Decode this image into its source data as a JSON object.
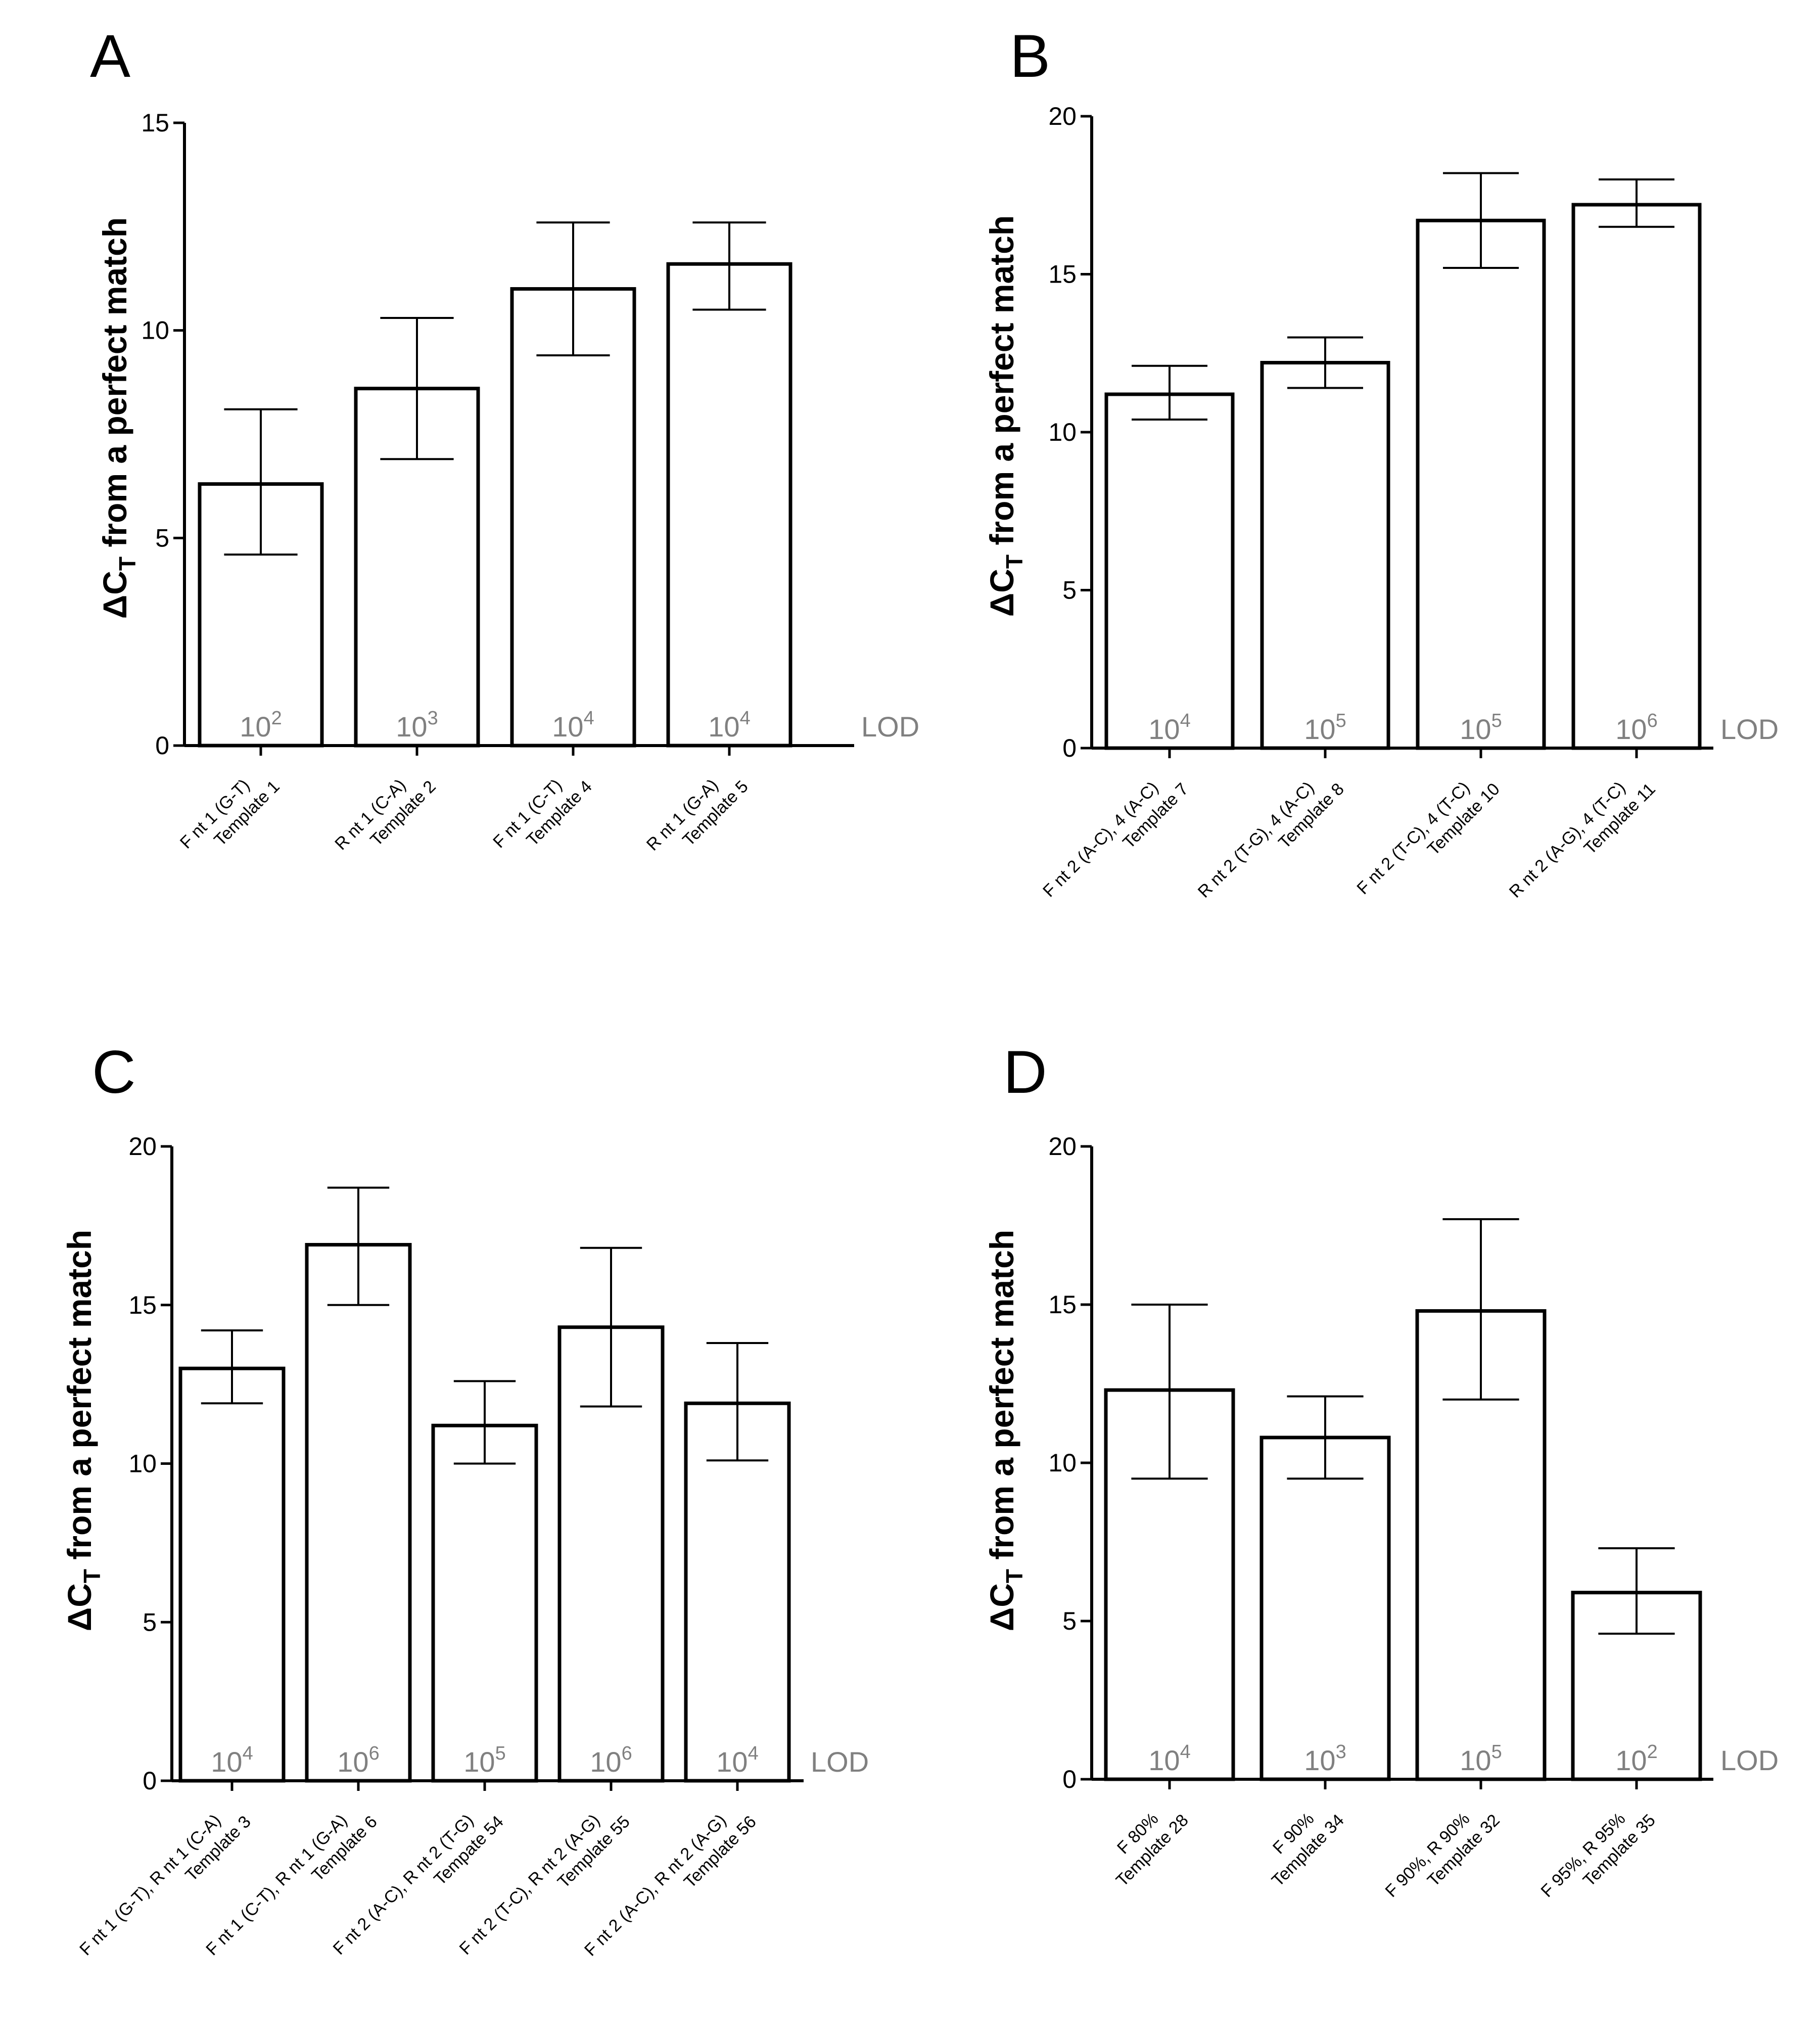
{
  "chart_data": [
    {
      "type": "bar",
      "panel": "A",
      "ylabel_main": "ΔC",
      "ylabel_sub": "T",
      "ylabel_rest": " from a perfect match",
      "ylim": [
        0,
        15
      ],
      "yticks": [
        "0",
        "5",
        "10",
        "15"
      ],
      "lod_label": "LOD",
      "categories": [
        [
          "F nt 1 (G-T)",
          "Template 1"
        ],
        [
          "R nt 1 (C-A)",
          "Template 2"
        ],
        [
          "F nt 1 (C-T)",
          "Template 4"
        ],
        [
          "R nt 1 (G-A)",
          "Template 5"
        ]
      ],
      "values": [
        6.3,
        8.6,
        11.0,
        11.6
      ],
      "err_low": [
        4.6,
        6.9,
        9.4,
        10.5
      ],
      "err_high": [
        8.1,
        10.3,
        12.6,
        12.6
      ],
      "lod": [
        {
          "base": "10",
          "exp": "2"
        },
        {
          "base": "10",
          "exp": "3"
        },
        {
          "base": "10",
          "exp": "4"
        },
        {
          "base": "10",
          "exp": "4"
        }
      ]
    },
    {
      "type": "bar",
      "panel": "B",
      "ylabel_main": "ΔC",
      "ylabel_sub": "T",
      "ylabel_rest": " from a perfect match",
      "ylim": [
        0,
        20
      ],
      "yticks": [
        "0",
        "5",
        "10",
        "15",
        "20"
      ],
      "lod_label": "LOD",
      "categories": [
        [
          "F nt 2 (A-C), 4 (A-C)",
          "Template 7"
        ],
        [
          "R nt 2 (T-G), 4 (A-C)",
          "Template 8"
        ],
        [
          "F nt 2 (T-C), 4 (T-C)",
          "Template 10"
        ],
        [
          "R nt 2 (A-G), 4 (T-C)",
          "Template 11"
        ]
      ],
      "values": [
        11.2,
        12.2,
        16.7,
        17.2
      ],
      "err_low": [
        10.4,
        11.4,
        15.2,
        16.5
      ],
      "err_high": [
        12.1,
        13.0,
        18.2,
        18.0
      ],
      "lod": [
        {
          "base": "10",
          "exp": "4"
        },
        {
          "base": "10",
          "exp": "5"
        },
        {
          "base": "10",
          "exp": "5"
        },
        {
          "base": "10",
          "exp": "6"
        }
      ]
    },
    {
      "type": "bar",
      "panel": "C",
      "ylabel_main": "ΔC",
      "ylabel_sub": "T",
      "ylabel_rest": " from a perfect match",
      "ylim": [
        0,
        20
      ],
      "yticks": [
        "0",
        "5",
        "10",
        "15",
        "20"
      ],
      "lod_label": "LOD",
      "categories": [
        [
          "F nt 1 (G-T),  R nt 1 (C-A)",
          "Template 3"
        ],
        [
          "F nt 1 (C-T), R nt 1 (G-A)",
          "Template 6"
        ],
        [
          "F nt 2 (A-C), R nt 2 (T-G)",
          "Tempate 54"
        ],
        [
          "F nt 2 (T-C), R nt 2 (A-G)",
          "Template 55"
        ],
        [
          "F nt 2 (A-C), R nt 2 (A-G)",
          "Template 56"
        ]
      ],
      "values": [
        13.0,
        16.9,
        11.2,
        14.3,
        11.9
      ],
      "err_low": [
        11.9,
        15.0,
        10.0,
        11.8,
        10.1
      ],
      "err_high": [
        14.2,
        18.7,
        12.6,
        16.8,
        13.8
      ],
      "lod": [
        {
          "base": "10",
          "exp": "4"
        },
        {
          "base": "10",
          "exp": "6"
        },
        {
          "base": "10",
          "exp": "5"
        },
        {
          "base": "10",
          "exp": "6"
        },
        {
          "base": "10",
          "exp": "4"
        }
      ]
    },
    {
      "type": "bar",
      "panel": "D",
      "ylabel_main": "ΔC",
      "ylabel_sub": "T",
      "ylabel_rest": " from a perfect match",
      "ylim": [
        0,
        20
      ],
      "yticks": [
        "0",
        "5",
        "10",
        "15",
        "20"
      ],
      "lod_label": "LOD",
      "categories": [
        [
          "F 80%",
          "Template 28"
        ],
        [
          "F 90%",
          "Template 34"
        ],
        [
          "F 90%, R 90%",
          "Template 32"
        ],
        [
          "F 95%, R 95%",
          "Template 35"
        ]
      ],
      "values": [
        12.3,
        10.8,
        14.8,
        5.9
      ],
      "err_low": [
        9.5,
        9.5,
        12.0,
        4.6
      ],
      "err_high": [
        15.0,
        12.1,
        17.7,
        7.3
      ],
      "lod": [
        {
          "base": "10",
          "exp": "4"
        },
        {
          "base": "10",
          "exp": "3"
        },
        {
          "base": "10",
          "exp": "5"
        },
        {
          "base": "10",
          "exp": "2"
        }
      ]
    }
  ]
}
